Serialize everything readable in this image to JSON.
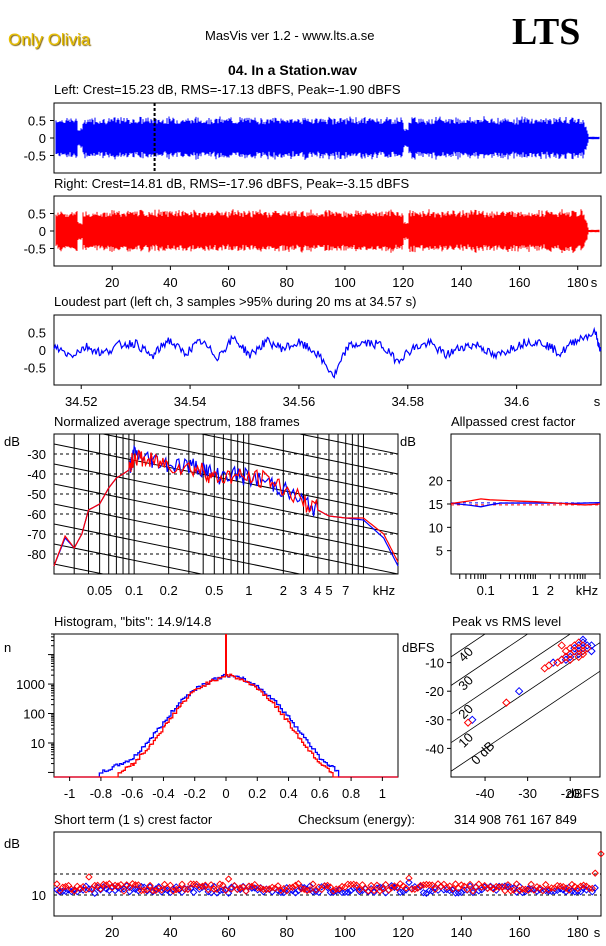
{
  "header": {
    "artist": "Only Olivia",
    "app_title": "MasVis ver 1.2 - www.lts.a.se",
    "logo": "LTS",
    "file_title": "04. In a Station.wav"
  },
  "colors": {
    "left": "#0000ff",
    "right": "#ff0000",
    "artist": "#e8c000"
  },
  "chart_data": [
    {
      "id": "left-waveform",
      "type": "area",
      "title": "Left: Crest=15.23 dB, RMS=-17.13 dBFS, Peak=-1.90 dBFS",
      "channel": "left",
      "crest_db": 15.23,
      "rms_dbfs": -17.13,
      "peak_dbfs": -1.9,
      "xlim": [
        0,
        188
      ],
      "ylim": [
        -1,
        1
      ],
      "yticks": [
        0.5,
        0,
        -0.5
      ],
      "ytick_labels": [
        "0.5",
        "0",
        "-0.5"
      ],
      "envelope_peak": 0.5,
      "envelope_dips_s": [
        9,
        121
      ],
      "fade_out_start_s": 182,
      "marker_s": 34.57
    },
    {
      "id": "right-waveform",
      "type": "area",
      "title": "Right: Crest=14.81 dB, RMS=-17.96 dBFS, Peak=-3.15 dBFS",
      "channel": "right",
      "crest_db": 14.81,
      "rms_dbfs": -17.96,
      "peak_dbfs": -3.15,
      "xlim": [
        0,
        188
      ],
      "ylim": [
        -1,
        1
      ],
      "yticks": [
        0.5,
        0,
        -0.5
      ],
      "ytick_labels": [
        "0.5",
        "0",
        "-0.5"
      ],
      "envelope_peak": 0.5,
      "envelope_dips_s": [
        9,
        121
      ],
      "fade_out_start_s": 182,
      "xticks": [
        20,
        40,
        60,
        80,
        100,
        120,
        140,
        160,
        180
      ],
      "xtick_labels": [
        "20",
        "40",
        "60",
        "80",
        "100",
        "120",
        "140",
        "160",
        "180",
        "s"
      ]
    },
    {
      "id": "loudest-part",
      "type": "line",
      "title": "Loudest part (left  ch, 3 samples >95% during 20 ms at 34.57 s)",
      "xlim": [
        34.515,
        34.6155
      ],
      "ylim": [
        -1,
        1
      ],
      "yticks": [
        0.5,
        0,
        -0.5
      ],
      "ytick_labels": [
        "0.5",
        "0",
        "-0.5"
      ],
      "xticks": [
        34.52,
        34.54,
        34.56,
        34.58,
        34.6
      ],
      "xtick_labels": [
        "34.52",
        "34.54",
        "34.56",
        "34.58",
        "34.6",
        "s"
      ],
      "x": [
        34.515,
        34.518,
        34.521,
        34.524,
        34.527,
        34.53,
        34.533,
        34.536,
        34.539,
        34.542,
        34.545,
        34.548,
        34.551,
        34.554,
        34.557,
        34.56,
        34.563,
        34.5665,
        34.569,
        34.572,
        34.575,
        34.578,
        34.581,
        34.584,
        34.587,
        34.59,
        34.593,
        34.596,
        34.599,
        34.602,
        34.605,
        34.608,
        34.611,
        34.6145,
        34.6155
      ],
      "y": [
        0.1,
        -0.15,
        0.1,
        -0.1,
        0.15,
        0.2,
        -0.2,
        0.3,
        -0.1,
        0.25,
        -0.2,
        0.35,
        -0.15,
        0.25,
        0.05,
        0.2,
        -0.05,
        -0.75,
        0.1,
        0.2,
        0.15,
        -0.3,
        0.05,
        0.2,
        -0.15,
        0.1,
        0.15,
        -0.2,
        0.05,
        0.25,
        0.2,
        -0.1,
        0.3,
        0.5,
        -0.1
      ]
    },
    {
      "id": "spectrum",
      "type": "line",
      "title": "Normalized average spectrum, 188 frames",
      "ylabel": "dB",
      "xlabel": "kHz",
      "ylim": [
        -90,
        -20
      ],
      "yticks": [
        -30,
        -40,
        -50,
        -60,
        -70,
        -80
      ],
      "ytick_labels": [
        "-30",
        "-40",
        "-50",
        "-60",
        "-70",
        "-80"
      ],
      "xscale": "log",
      "xlim_khz": [
        0.02,
        20
      ],
      "xticks_khz": [
        0.05,
        0.1,
        0.2,
        0.5,
        1,
        2,
        3,
        4,
        5,
        7
      ],
      "xtick_labels": [
        "0.05",
        "0.1",
        "0.2",
        "0.5",
        "1",
        "2",
        "3",
        "4",
        "5",
        "7",
        "kHz"
      ],
      "series": [
        {
          "name": "left",
          "x_khz": [
            0.02,
            0.025,
            0.03,
            0.035,
            0.04,
            0.05,
            0.06,
            0.07,
            0.08,
            0.09,
            0.1,
            0.12,
            0.15,
            0.2,
            0.3,
            0.4,
            0.5,
            0.7,
            1,
            1.5,
            2,
            3,
            4,
            5,
            7,
            10,
            15,
            20
          ],
          "values": [
            -86,
            -72,
            -77,
            -70,
            -58,
            -55,
            -47,
            -42,
            -40,
            -38,
            -30,
            -32,
            -33,
            -35,
            -36,
            -37,
            -41,
            -40,
            -42,
            -44,
            -48,
            -54,
            -58,
            -61,
            -62,
            -63,
            -72,
            -86
          ]
        },
        {
          "name": "right",
          "x_khz": [
            0.02,
            0.025,
            0.03,
            0.035,
            0.04,
            0.05,
            0.06,
            0.07,
            0.08,
            0.09,
            0.1,
            0.12,
            0.15,
            0.2,
            0.3,
            0.4,
            0.5,
            0.7,
            1,
            1.5,
            2,
            3,
            4,
            5,
            7,
            10,
            15,
            20
          ],
          "values": [
            -86,
            -71,
            -77,
            -70,
            -58,
            -55,
            -47,
            -42,
            -40,
            -38,
            -31,
            -33,
            -34,
            -35,
            -37,
            -38,
            -42,
            -41,
            -42,
            -43,
            -47,
            -54,
            -58,
            -61,
            -62,
            -62,
            -70,
            -84
          ]
        }
      ]
    },
    {
      "id": "allpassed-crest",
      "type": "line",
      "title": "Allpassed crest factor",
      "ylabel": "dB",
      "xlabel": "kHz",
      "ylim": [
        0,
        30
      ],
      "yticks": [
        20,
        15,
        10,
        5
      ],
      "ytick_labels": [
        "20",
        "15",
        "10",
        "5"
      ],
      "xscale": "log",
      "xlim_khz": [
        0.02,
        20
      ],
      "xticks_khz": [
        0.1,
        1,
        2
      ],
      "xtick_labels": [
        "0.1",
        "1",
        "2",
        "kHz"
      ],
      "reference_left_db": 15.23,
      "reference_right_db": 14.81,
      "series": [
        {
          "name": "left",
          "x_khz": [
            0.02,
            0.05,
            0.08,
            0.12,
            0.2,
            0.5,
            1,
            2,
            5,
            10,
            20
          ],
          "values": [
            15.2,
            14.7,
            14.4,
            14.8,
            15.2,
            15.2,
            15.2,
            15.2,
            15.1,
            15.2,
            15.3
          ]
        },
        {
          "name": "right",
          "x_khz": [
            0.02,
            0.05,
            0.08,
            0.12,
            0.2,
            0.5,
            1,
            2,
            5,
            10,
            20
          ],
          "values": [
            15.1,
            15.7,
            16.1,
            15.9,
            15.8,
            15.6,
            15.5,
            15.3,
            15.0,
            14.8,
            15.0
          ]
        }
      ]
    },
    {
      "id": "histogram",
      "type": "line",
      "title": "Histogram, \"bits\": 14.9/14.8",
      "bits_left": 14.9,
      "bits_right": 14.8,
      "ylabel": "n",
      "yscale": "log",
      "ylim": [
        0.7,
        50000
      ],
      "yticks": [
        1000,
        100,
        10
      ],
      "ytick_labels": [
        "1000",
        "100",
        "10"
      ],
      "xlim": [
        -1.1,
        1.1
      ],
      "xticks": [
        -1,
        -0.8,
        -0.6,
        -0.4,
        -0.2,
        0,
        0.2,
        0.4,
        0.6,
        0.8,
        1
      ],
      "xtick_labels": [
        "-1",
        "-0.8",
        "-0.6",
        "-0.4",
        "-0.2",
        "0",
        "0.2",
        "0.4",
        "0.6",
        "0.8",
        "1"
      ],
      "series": [
        {
          "name": "left",
          "x": [
            -0.8,
            -0.6,
            -0.5,
            -0.4,
            -0.3,
            -0.2,
            -0.1,
            0,
            0.1,
            0.2,
            0.3,
            0.4,
            0.5,
            0.6,
            0.72
          ],
          "values": [
            1,
            3,
            12,
            50,
            250,
            700,
            1300,
            2000,
            1500,
            800,
            300,
            70,
            15,
            3,
            1
          ]
        },
        {
          "name": "right",
          "x": [
            -0.68,
            -0.6,
            -0.5,
            -0.4,
            -0.3,
            -0.2,
            -0.1,
            0,
            0.1,
            0.2,
            0.3,
            0.4,
            0.5,
            0.6,
            0.68
          ],
          "values": [
            1,
            2,
            7,
            35,
            180,
            650,
            1250,
            2100,
            1400,
            700,
            220,
            45,
            8,
            2,
            1
          ],
          "spike_at_zero": 40000
        }
      ]
    },
    {
      "id": "peak-vs-rms",
      "type": "scatter",
      "title": "Peak vs RMS level",
      "ylabel": "dBFS",
      "xlabel": "dBFS",
      "xlim": [
        -48,
        -13
      ],
      "ylim": [
        -50,
        0
      ],
      "xticks": [
        -40,
        -30,
        -20
      ],
      "xtick_labels": [
        "-40",
        "-30",
        "-20",
        "dBFS"
      ],
      "yticks": [
        -10,
        -20,
        -30,
        -40
      ],
      "ytick_labels": [
        "-10",
        "-20",
        "-30",
        "-40"
      ],
      "crest_lines_db": [
        0,
        10,
        20,
        30,
        40
      ],
      "crest_line_labels": [
        "0 dB",
        "10",
        "20",
        "30",
        "40"
      ],
      "series": [
        {
          "name": "left",
          "x": [
            -43,
            -32,
            -24,
            -22,
            -21,
            -20,
            -19,
            -19,
            -18,
            -18,
            -17,
            -17,
            -16,
            -16,
            -15,
            -15,
            -21,
            -20,
            -18,
            -17
          ],
          "y": [
            -30,
            -20,
            -10,
            -9,
            -8,
            -7,
            -6,
            -5,
            -6,
            -4,
            -5,
            -3,
            -5,
            -4,
            -4,
            -6,
            -9,
            -8,
            -7,
            -2
          ]
        },
        {
          "name": "right",
          "x": [
            -44,
            -35,
            -26,
            -25,
            -23,
            -22,
            -21,
            -21,
            -20,
            -20,
            -19,
            -19,
            -18,
            -18,
            -17,
            -17,
            -16,
            -22,
            -20,
            -18,
            -17
          ],
          "y": [
            -31,
            -24,
            -12,
            -11,
            -10,
            -9,
            -8,
            -6,
            -7,
            -5,
            -6,
            -4,
            -5,
            -3,
            -4,
            -6,
            -5,
            -4,
            -9,
            -8,
            -7
          ]
        }
      ]
    },
    {
      "id": "short-term-crest",
      "type": "scatter",
      "title": "Short term (1 s) crest factor",
      "ylabel": "dB",
      "ylim": [
        5,
        25
      ],
      "yticks": [
        10
      ],
      "ytick_labels": [
        "10"
      ],
      "dashed_lines_db": [
        10,
        15
      ],
      "xlim": [
        0,
        188
      ],
      "xticks": [
        20,
        40,
        60,
        80,
        100,
        120,
        140,
        160,
        180
      ],
      "xtick_labels": [
        "20",
        "40",
        "60",
        "80",
        "100",
        "120",
        "140",
        "160",
        "180",
        "s"
      ],
      "left_mean_db": 11.3,
      "right_mean_db": 11.8,
      "notable_points": [
        {
          "channel": "right",
          "x": 12,
          "y": 14.3
        },
        {
          "channel": "right",
          "x": 60,
          "y": 13.8
        },
        {
          "channel": "right",
          "x": 122,
          "y": 14.0
        },
        {
          "channel": "left",
          "x": 122,
          "y": 13.0
        },
        {
          "channel": "right",
          "x": 186,
          "y": 15.2
        },
        {
          "channel": "right",
          "x": 188,
          "y": 19.8
        }
      ]
    }
  ],
  "checksum": {
    "label": "Checksum (energy):",
    "value": "314 908 761 167 849"
  }
}
